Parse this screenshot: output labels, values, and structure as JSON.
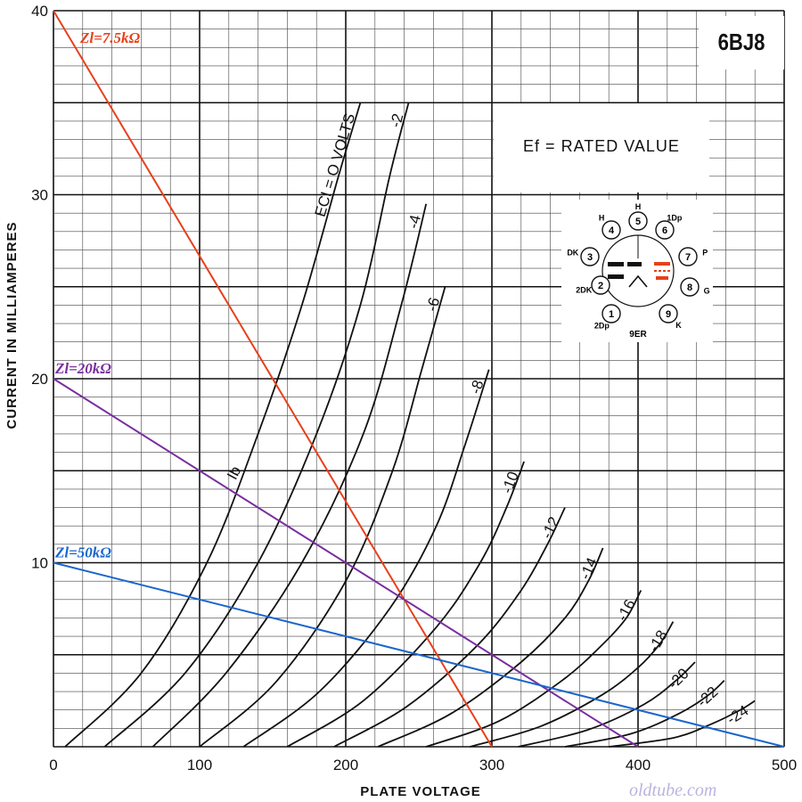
{
  "chart_data": {
    "type": "line",
    "title": "6BJ8",
    "note": "Ef = RATED VALUE",
    "xlabel": "PLATE VOLTAGE",
    "ylabel": "CURRENT IN MILLIAMPERES",
    "xlim": [
      0,
      500
    ],
    "ylim": [
      0,
      40
    ],
    "x_ticks": [
      "0",
      "100",
      "200",
      "300",
      "400",
      "500"
    ],
    "y_ticks": [
      "10",
      "20",
      "30",
      "40"
    ],
    "grid": true,
    "ib_label": "Ib",
    "series": [
      {
        "name": "ECI = O VOLTS",
        "x": [
          8,
          60,
          105,
          140,
          170,
          195,
          210
        ],
        "y": [
          0,
          4,
          10,
          17,
          24,
          31,
          35
        ]
      },
      {
        "name": "-2",
        "x": [
          35,
          90,
          140,
          180,
          210,
          230,
          243
        ],
        "y": [
          0,
          4,
          10,
          17,
          24,
          31,
          35
        ]
      },
      {
        "name": "-4",
        "x": [
          68,
          118,
          170,
          212,
          238,
          255
        ],
        "y": [
          0,
          4,
          10,
          17,
          24,
          29.5
        ]
      },
      {
        "name": "-6",
        "x": [
          100,
          152,
          200,
          232,
          252,
          268
        ],
        "y": [
          0,
          3.5,
          9,
          15,
          20.5,
          25
        ]
      },
      {
        "name": "-8",
        "x": [
          130,
          182,
          230,
          262,
          282,
          298
        ],
        "y": [
          0,
          3,
          7.5,
          12,
          16.5,
          20.5
        ]
      },
      {
        "name": "-10",
        "x": [
          160,
          212,
          262,
          292,
          310,
          322
        ],
        "y": [
          0,
          2.5,
          6.5,
          10,
          13,
          15.5
        ]
      },
      {
        "name": "-12",
        "x": [
          192,
          242,
          290,
          320,
          338,
          350
        ],
        "y": [
          0,
          2.2,
          5.5,
          8.5,
          11,
          13
        ]
      },
      {
        "name": "-14",
        "x": [
          222,
          272,
          320,
          350,
          366,
          376
        ],
        "y": [
          0,
          1.8,
          4.6,
          7,
          9,
          10.8
        ]
      },
      {
        "name": "-16",
        "x": [
          255,
          305,
          348,
          375,
          392,
          402
        ],
        "y": [
          0,
          1.4,
          3.6,
          5.5,
          7,
          8.5
        ]
      },
      {
        "name": "-18",
        "x": [
          285,
          333,
          375,
          400,
          415,
          424
        ],
        "y": [
          0,
          1.1,
          2.8,
          4.3,
          5.6,
          6.8
        ]
      },
      {
        "name": "-20",
        "x": [
          318,
          365,
          404,
          426,
          439
        ],
        "y": [
          0,
          0.9,
          2.3,
          3.6,
          4.6
        ]
      },
      {
        "name": "-22",
        "x": [
          350,
          395,
          428,
          448,
          459
        ],
        "y": [
          0,
          0.7,
          1.8,
          2.8,
          3.6
        ]
      },
      {
        "name": "-24",
        "x": [
          380,
          425,
          452,
          470,
          480
        ],
        "y": [
          0,
          0.5,
          1.3,
          2,
          2.5
        ]
      }
    ],
    "load_lines": [
      {
        "name": "Zl=7.5kΩ",
        "color": "#e8401a",
        "x": [
          0,
          300
        ],
        "y": [
          40,
          0
        ]
      },
      {
        "name": "Zl=20kΩ",
        "color": "#7a2ea0",
        "x": [
          0,
          400
        ],
        "y": [
          20,
          0
        ]
      },
      {
        "name": "Zl=50kΩ",
        "color": "#1a66cc",
        "x": [
          0,
          500
        ],
        "y": [
          10,
          0
        ]
      }
    ]
  },
  "pinout": {
    "label": "9ER",
    "accent_color": "#e8401a",
    "pins": [
      {
        "num": "1",
        "label": "2Dp"
      },
      {
        "num": "2",
        "label": "2DK"
      },
      {
        "num": "3",
        "label": "DK"
      },
      {
        "num": "4",
        "label": "H"
      },
      {
        "num": "5",
        "label": "H"
      },
      {
        "num": "6",
        "label": "1Dp"
      },
      {
        "num": "7",
        "label": "P"
      },
      {
        "num": "8",
        "label": "G"
      },
      {
        "num": "9",
        "label": "K"
      }
    ]
  },
  "watermark": "oldtube.com"
}
